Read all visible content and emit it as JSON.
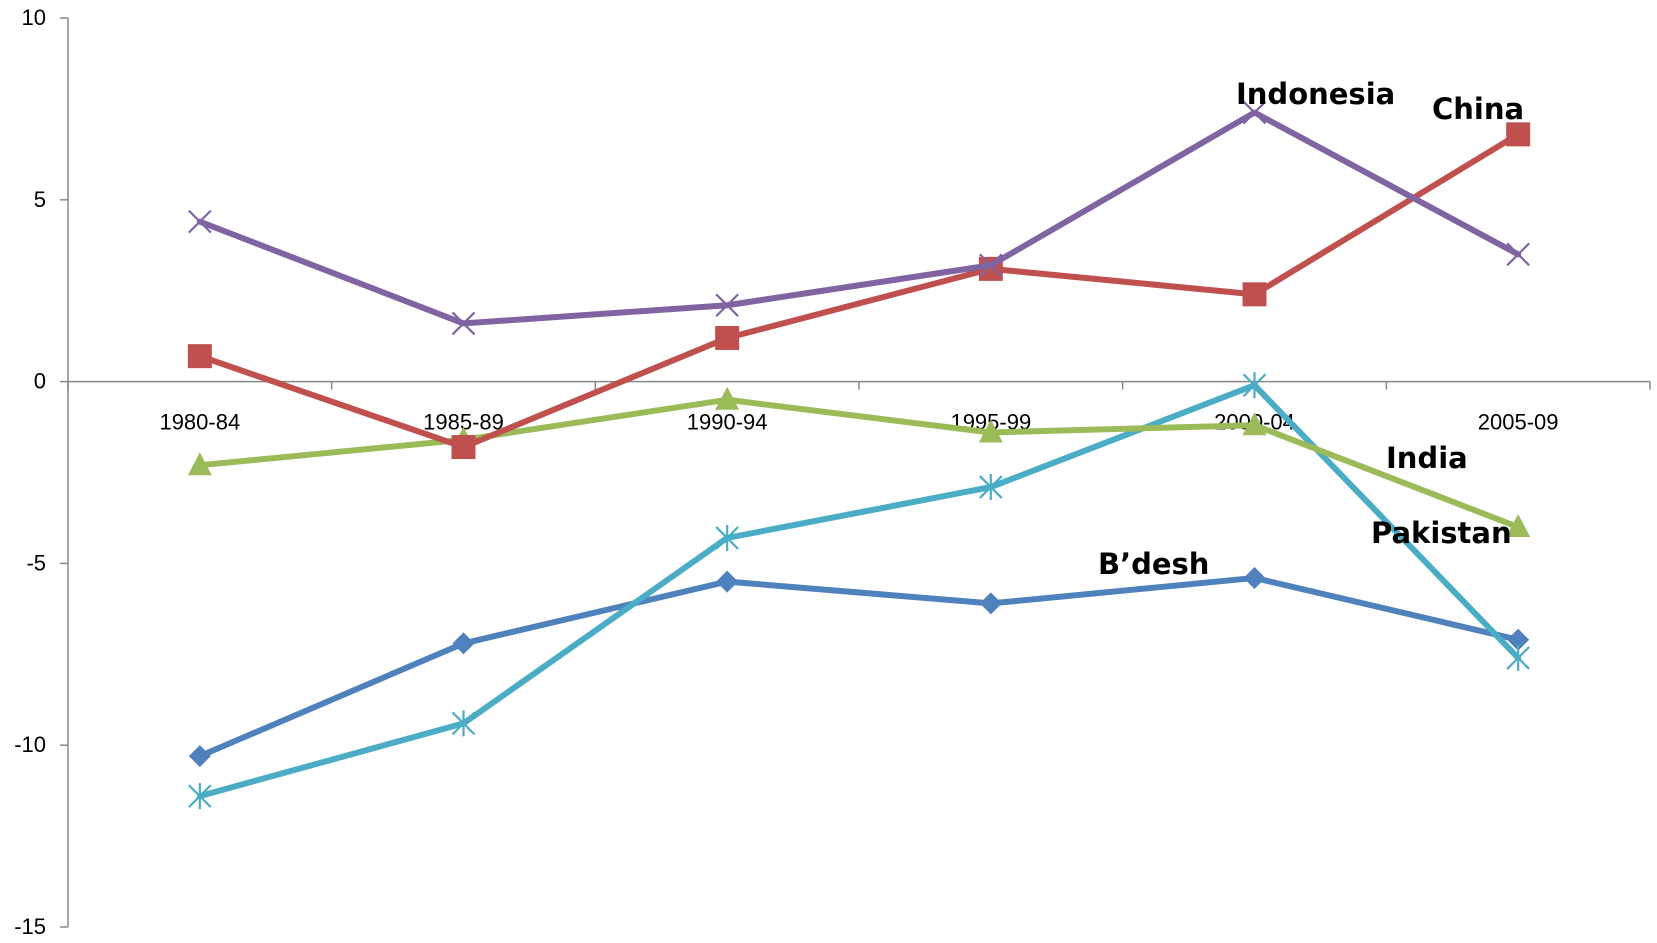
{
  "chart_data": {
    "type": "line",
    "categories": [
      "1980-84",
      "1985-89",
      "1990-94",
      "1995-99",
      "2000-04",
      "2005-09"
    ],
    "ylim": [
      -15,
      10
    ],
    "yticks": [
      10,
      5,
      0,
      -5,
      -10,
      -15
    ],
    "ytick_labels": [
      "10",
      "5",
      "0",
      "-5",
      "-10",
      "-15"
    ],
    "grid": false,
    "legend": "none",
    "series": [
      {
        "name": "Indonesia",
        "color": "#8064A2",
        "marker": "x",
        "values": [
          4.4,
          1.6,
          2.1,
          3.2,
          7.4,
          3.5
        ]
      },
      {
        "name": "China",
        "color": "#C0504D",
        "marker": "square",
        "values": [
          0.7,
          -1.8,
          1.2,
          3.1,
          2.4,
          6.8
        ]
      },
      {
        "name": "India",
        "color": "#9BBB59",
        "marker": "triangle",
        "values": [
          -2.3,
          -1.6,
          -0.5,
          -1.4,
          -1.2,
          -4.0
        ]
      },
      {
        "name": "Pakistan",
        "color": "#4BACC6",
        "marker": "star",
        "values": [
          -11.4,
          -9.4,
          -4.3,
          -2.9,
          -0.1,
          -7.6
        ]
      },
      {
        "name": "B’desh",
        "color": "#4F81BD",
        "marker": "diamond",
        "values": [
          -10.3,
          -7.2,
          -5.5,
          -6.1,
          -5.4,
          -7.1
        ]
      }
    ]
  }
}
